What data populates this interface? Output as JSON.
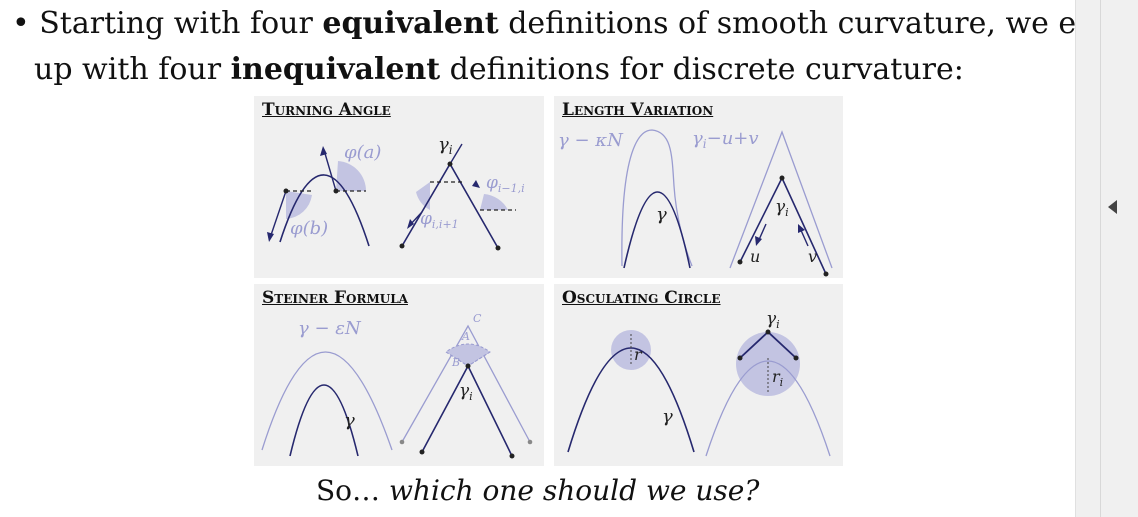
{
  "bullet": {
    "marker": "•",
    "line1_a": "Starting with four ",
    "line1_bold": "equivalent",
    "line1_b": " definitions of smooth curvature, we ended",
    "line2_a": "up with four ",
    "line2_bold": "inequivalent",
    "line2_b": " definitions for discrete curvature:"
  },
  "panels": {
    "turning_angle": {
      "title": "Turning Angle",
      "labels": {
        "phi_a": "φ(a)",
        "phi_b": "φ(b)",
        "gamma_i": "γ",
        "gamma_i_sub": "i",
        "phi_prev": "φ",
        "phi_prev_sub": "i−1,i",
        "phi_next": "φ",
        "phi_next_sub": "i,i+1"
      }
    },
    "length_variation": {
      "title": "Length Variation",
      "labels": {
        "gamma_kN": "γ − κN",
        "gamma_uv": "γ",
        "gamma_uv_sub": "i",
        "gamma_uv_rest": "−u+v",
        "gamma": "γ",
        "gamma_i": "γ",
        "gamma_i_sub": "i",
        "u": "u",
        "v": "v"
      }
    },
    "steiner_formula": {
      "title": "Steiner Formula",
      "labels": {
        "gamma_eN": "γ − εN",
        "gamma": "γ",
        "gamma_i": "γ",
        "gamma_i_sub": "i",
        "A": "A",
        "B": "B",
        "C": "C"
      }
    },
    "osculating_circle": {
      "title": "Osculating Circle",
      "labels": {
        "r": "r",
        "gamma": "γ",
        "gamma_i": "γ",
        "gamma_i_sub": "i",
        "r_i": "r",
        "r_i_sub": "i"
      }
    }
  },
  "conclusion": {
    "prefix": "So… ",
    "question": "which one should we use?"
  },
  "colors": {
    "dark": "#26286e",
    "light": "#9a9cd0",
    "fill": "#c3c4e2",
    "panel_bg": "#f0f0f0"
  }
}
